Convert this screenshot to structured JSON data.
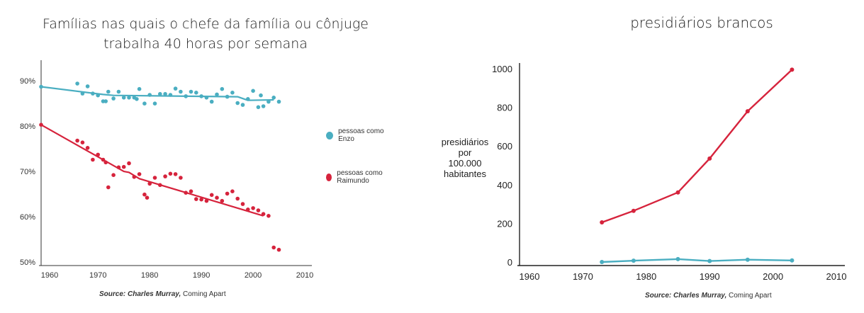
{
  "left": {
    "title_line1": "Famílias nas quais o chefe da família ou cônjuge",
    "title_line2": "trabalha 40 horas por semana",
    "source_prefix": "Source: Charles Murray,",
    "source_book": "Coming Apart",
    "legend": [
      {
        "label": "pessoas como Enzo",
        "color": "#4aaec1"
      },
      {
        "label": "pessoas como Raimundo",
        "color": "#d6233c"
      }
    ]
  },
  "right": {
    "title": "presidiários brancos",
    "ylabel_line1": "presidiários",
    "ylabel_line2": "por",
    "ylabel_line3": "100.000",
    "ylabel_line4": "habitantes",
    "source_prefix": "Source: Charles Murray,",
    "source_book": "Coming Apart"
  },
  "chart_data": [
    {
      "type": "scatter",
      "title": "Famílias nas quais o chefe da família ou cônjuge trabalha 40 horas por semana",
      "xlabel": "",
      "ylabel": "",
      "xlim": [
        1959,
        2010
      ],
      "ylim": [
        50,
        93
      ],
      "x_ticks": [
        1960,
        1970,
        1980,
        1990,
        2000,
        2010
      ],
      "y_ticks": [
        50,
        60,
        70,
        80,
        90
      ],
      "y_tick_labels": [
        "50%",
        "60%",
        "70%",
        "80%",
        "90%"
      ],
      "grid": false,
      "legend_position": "right",
      "series": [
        {
          "name": "pessoas como Enzo",
          "color": "#4aaec1",
          "points": [
            [
              1959,
              88.7
            ],
            [
              1966,
              89.4
            ],
            [
              1967,
              87.2
            ],
            [
              1968,
              88.8
            ],
            [
              1969,
              87.2
            ],
            [
              1970,
              86.8
            ],
            [
              1971,
              85.5
            ],
            [
              1971.5,
              85.5
            ],
            [
              1972,
              87.6
            ],
            [
              1973,
              86.1
            ],
            [
              1974,
              87.6
            ],
            [
              1975,
              86.3
            ],
            [
              1976,
              86.3
            ],
            [
              1977,
              86.3
            ],
            [
              1977.5,
              86.0
            ],
            [
              1978,
              88.2
            ],
            [
              1979,
              85.0
            ],
            [
              1980,
              86.9
            ],
            [
              1981,
              85.0
            ],
            [
              1982,
              87.1
            ],
            [
              1983,
              87.1
            ],
            [
              1984,
              86.9
            ],
            [
              1985,
              88.3
            ],
            [
              1986,
              87.6
            ],
            [
              1987,
              86.6
            ],
            [
              1988,
              87.6
            ],
            [
              1989,
              87.4
            ],
            [
              1990,
              86.6
            ],
            [
              1991,
              86.3
            ],
            [
              1992,
              85.4
            ],
            [
              1993,
              87.0
            ],
            [
              1994,
              88.2
            ],
            [
              1995,
              86.5
            ],
            [
              1996,
              87.4
            ],
            [
              1997,
              85.1
            ],
            [
              1998,
              84.7
            ],
            [
              1999,
              86.0
            ],
            [
              2000,
              87.8
            ],
            [
              2001,
              84.2
            ],
            [
              2001.5,
              86.8
            ],
            [
              2002,
              84.4
            ],
            [
              2003,
              85.4
            ],
            [
              2004,
              86.3
            ],
            [
              2005,
              85.4
            ]
          ],
          "trend": [
            [
              1959,
              88.7
            ],
            [
              1971,
              87.0
            ],
            [
              1973,
              86.8
            ],
            [
              1997,
              86.5
            ],
            [
              1999,
              85.7
            ],
            [
              2004,
              85.8
            ]
          ]
        },
        {
          "name": "pessoas como Raimundo",
          "color": "#d6233c",
          "points": [
            [
              1959,
              80.3
            ],
            [
              1966,
              76.8
            ],
            [
              1967,
              76.4
            ],
            [
              1968,
              75.2
            ],
            [
              1969,
              72.6
            ],
            [
              1970,
              73.7
            ],
            [
              1971,
              72.6
            ],
            [
              1971.5,
              72.0
            ],
            [
              1972,
              66.5
            ],
            [
              1973,
              69.2
            ],
            [
              1974,
              70.9
            ],
            [
              1975,
              71.0
            ],
            [
              1976,
              71.8
            ],
            [
              1977,
              68.8
            ],
            [
              1978,
              69.4
            ],
            [
              1979,
              64.9
            ],
            [
              1979.5,
              64.2
            ],
            [
              1980,
              67.3
            ],
            [
              1981,
              68.6
            ],
            [
              1982,
              67.0
            ],
            [
              1983,
              68.9
            ],
            [
              1984,
              69.5
            ],
            [
              1985,
              69.4
            ],
            [
              1986,
              68.6
            ],
            [
              1987,
              65.3
            ],
            [
              1988,
              65.6
            ],
            [
              1989,
              63.9
            ],
            [
              1990,
              63.8
            ],
            [
              1991,
              63.5
            ],
            [
              1992,
              64.8
            ],
            [
              1993,
              64.2
            ],
            [
              1994,
              63.5
            ],
            [
              1995,
              65.1
            ],
            [
              1996,
              65.6
            ],
            [
              1997,
              64.0
            ],
            [
              1998,
              62.8
            ],
            [
              1999,
              61.6
            ],
            [
              2000,
              61.9
            ],
            [
              2001,
              61.4
            ],
            [
              2002,
              60.6
            ],
            [
              2003,
              60.2
            ],
            [
              2004,
              53.2
            ],
            [
              2005,
              52.7
            ]
          ],
          "trend": [
            [
              1959,
              80.3
            ],
            [
              1975,
              70.0
            ],
            [
              1976,
              69.8
            ],
            [
              1978,
              68.4
            ],
            [
              2002,
              60.2
            ]
          ]
        }
      ]
    },
    {
      "type": "line",
      "title": "presidiários brancos",
      "xlabel": "",
      "ylabel": "presidiários por 100.000 habitantes",
      "xlim": [
        1960,
        2010
      ],
      "ylim": [
        0,
        1000
      ],
      "x_ticks": [
        1960,
        1970,
        1980,
        1990,
        2000,
        2010
      ],
      "y_ticks": [
        0,
        200,
        400,
        600,
        800,
        1000
      ],
      "grid": false,
      "series": [
        {
          "name": "",
          "color": "#d6233c",
          "x": [
            1973,
            1978,
            1985,
            1990,
            1996,
            2003
          ],
          "values": [
            205,
            265,
            360,
            535,
            780,
            995
          ]
        },
        {
          "name": "",
          "color": "#4aaec1",
          "x": [
            1973,
            1978,
            1985,
            1990,
            1996,
            2003
          ],
          "values": [
            0,
            7,
            15,
            5,
            12,
            8
          ]
        }
      ]
    }
  ]
}
